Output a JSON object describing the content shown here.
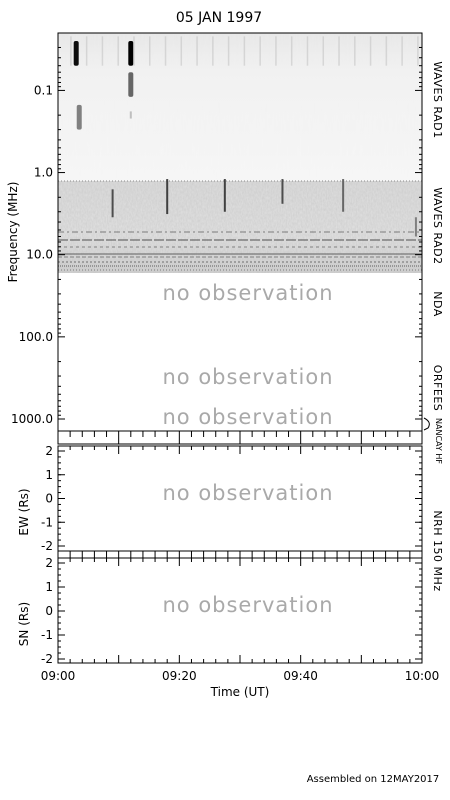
{
  "page": {
    "title": "05 JAN 1997",
    "footer": "Assembled on 12MAY2017",
    "no_observation_label": "no observation"
  },
  "spectrogram": {
    "ylabel": "Frequency (MHz)",
    "y_scale": "log",
    "y_range_mhz": [
      0.02,
      1400
    ],
    "y_ticks": [
      {
        "value": 0.1,
        "label": "0.1"
      },
      {
        "value": 1.0,
        "label": "1.0"
      },
      {
        "value": 10.0,
        "label": "10.0"
      },
      {
        "value": 100.0,
        "label": "100.0"
      },
      {
        "value": 1000.0,
        "label": "1000.0"
      }
    ],
    "instruments": [
      {
        "name": "WAVES RAD1",
        "fmin": 0.02,
        "fmax": 1.1,
        "status": "data"
      },
      {
        "name": "WAVES RAD2",
        "fmin": 1.1,
        "fmax": 14,
        "status": "data"
      },
      {
        "name": "NDA",
        "fmin": 14,
        "fmax": 80,
        "status": "no observation"
      },
      {
        "name": "ORFEES",
        "fmin": 140,
        "fmax": 1000,
        "status": "no observation"
      },
      {
        "name": "NANCAY HF",
        "fmin": 1000,
        "fmax": 1400,
        "status": "no observation"
      }
    ]
  },
  "nrh": {
    "label": "NRH 150 MHz",
    "ew_panel": {
      "ylabel": "EW (Rs)",
      "ylim": [
        -2,
        2
      ],
      "ticks": [
        "2",
        "1",
        "0",
        "-1",
        "-2"
      ],
      "status": "no observation"
    },
    "sn_panel": {
      "ylabel": "SN (Rs)",
      "ylim": [
        -2,
        2
      ],
      "ticks": [
        "2",
        "1",
        "0",
        "-1",
        "-2"
      ],
      "status": "no observation"
    }
  },
  "x_axis": {
    "label": "Time (UT)",
    "range": [
      "09:00",
      "10:00"
    ],
    "ticks": [
      "09:00",
      "09:20",
      "09:40",
      "10:00"
    ]
  },
  "chart_data": {
    "type": "heatmap",
    "title": "05 JAN 1997",
    "xlabel": "Time (UT)",
    "ylabel": "Frequency (MHz)",
    "x_range": [
      "09:00",
      "10:00"
    ],
    "y_range": [
      0.02,
      1400
    ],
    "y_scale": "log",
    "grid": false,
    "bursts": [
      {
        "time": "09:03",
        "fmin": 0.025,
        "fmax": 0.05,
        "intensity": 0.95
      },
      {
        "time": "09:03.5",
        "fmin": 0.15,
        "fmax": 0.3,
        "intensity": 0.5
      },
      {
        "time": "09:12",
        "fmin": 0.025,
        "fmax": 0.05,
        "intensity": 1.0
      },
      {
        "time": "09:12",
        "fmin": 0.06,
        "fmax": 0.12,
        "intensity": 0.6
      },
      {
        "time": "09:12",
        "fmin": 0.18,
        "fmax": 0.22,
        "intensity": 0.25
      },
      {
        "time": "09:09",
        "fmin": 1.6,
        "fmax": 3.5,
        "intensity": 0.7
      },
      {
        "time": "09:18",
        "fmin": 1.2,
        "fmax": 3.2,
        "intensity": 0.75
      },
      {
        "time": "09:27.5",
        "fmin": 1.2,
        "fmax": 3.0,
        "intensity": 0.75
      },
      {
        "time": "09:37",
        "fmin": 1.2,
        "fmax": 2.4,
        "intensity": 0.7
      },
      {
        "time": "09:47",
        "fmin": 1.2,
        "fmax": 3.0,
        "intensity": 0.6
      },
      {
        "time": "09:59",
        "fmin": 3.5,
        "fmax": 6.0,
        "intensity": 0.5
      }
    ]
  }
}
